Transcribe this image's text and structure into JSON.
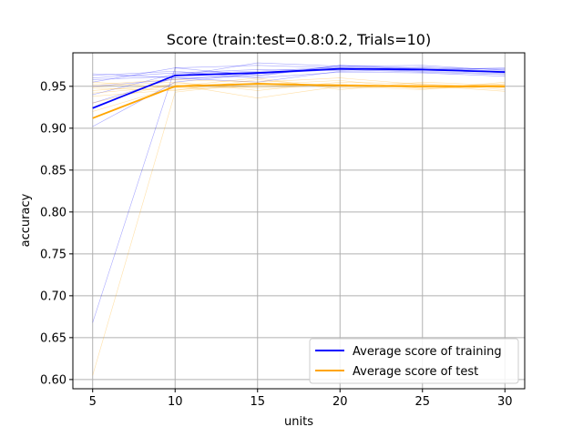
{
  "chart_data": {
    "type": "line",
    "title": "Score (train:test=0.8:0.2, Trials=10)",
    "xlabel": "units",
    "ylabel": "accuracy",
    "x": [
      5,
      10,
      15,
      20,
      25,
      30
    ],
    "xticks": [
      "5",
      "10",
      "15",
      "20",
      "25",
      "30"
    ],
    "yticks": [
      "0.60",
      "0.65",
      "0.70",
      "0.75",
      "0.80",
      "0.85",
      "0.90",
      "0.95"
    ],
    "xlim": [
      3.8,
      31.2
    ],
    "ylim": [
      0.589,
      0.99
    ],
    "grid": true,
    "legend_position": "lower-right",
    "colors": {
      "train": "#0000ff",
      "test": "#ffa500"
    },
    "series": [
      {
        "name": "Average score of training",
        "role": "train",
        "values": [
          0.924,
          0.963,
          0.966,
          0.971,
          0.97,
          0.967
        ]
      },
      {
        "name": "Average score of test",
        "role": "test",
        "values": [
          0.912,
          0.95,
          0.953,
          0.951,
          0.95,
          0.95
        ]
      }
    ],
    "trial_series": [
      {
        "role": "train",
        "values": [
          0.965,
          0.96,
          0.962,
          0.975,
          0.972,
          0.968
        ]
      },
      {
        "role": "train",
        "values": [
          0.96,
          0.966,
          0.97,
          0.969,
          0.973,
          0.97
        ]
      },
      {
        "role": "train",
        "values": [
          0.955,
          0.972,
          0.975,
          0.972,
          0.968,
          0.965
        ]
      },
      {
        "role": "train",
        "values": [
          0.95,
          0.958,
          0.965,
          0.97,
          0.97,
          0.972
        ]
      },
      {
        "role": "train",
        "values": [
          0.963,
          0.968,
          0.96,
          0.967,
          0.966,
          0.962
        ]
      },
      {
        "role": "train",
        "values": [
          0.958,
          0.962,
          0.978,
          0.974,
          0.975,
          0.969
        ]
      },
      {
        "role": "train",
        "values": [
          0.94,
          0.965,
          0.968,
          0.973,
          0.971,
          0.966
        ]
      },
      {
        "role": "train",
        "values": [
          0.93,
          0.96,
          0.955,
          0.968,
          0.969,
          0.967
        ]
      },
      {
        "role": "train",
        "values": [
          0.902,
          0.955,
          0.965,
          0.97,
          0.967,
          0.964
        ]
      },
      {
        "role": "train",
        "values": [
          0.668,
          0.972,
          0.963,
          0.975,
          0.97,
          0.971
        ]
      },
      {
        "role": "test",
        "values": [
          0.955,
          0.948,
          0.95,
          0.952,
          0.948,
          0.95
        ]
      },
      {
        "role": "test",
        "values": [
          0.95,
          0.955,
          0.945,
          0.955,
          0.953,
          0.948
        ]
      },
      {
        "role": "test",
        "values": [
          0.948,
          0.945,
          0.958,
          0.948,
          0.95,
          0.952
        ]
      },
      {
        "role": "test",
        "values": [
          0.945,
          0.952,
          0.936,
          0.95,
          0.946,
          0.955
        ]
      },
      {
        "role": "test",
        "values": [
          0.952,
          0.958,
          0.955,
          0.96,
          0.952,
          0.946
        ]
      },
      {
        "role": "test",
        "values": [
          0.942,
          0.95,
          0.96,
          0.946,
          0.955,
          0.951
        ]
      },
      {
        "role": "test",
        "values": [
          0.938,
          0.946,
          0.95,
          0.953,
          0.949,
          0.953
        ]
      },
      {
        "role": "test",
        "values": [
          0.93,
          0.954,
          0.948,
          0.951,
          0.951,
          0.944
        ]
      },
      {
        "role": "test",
        "values": [
          0.92,
          0.949,
          0.952,
          0.957,
          0.947,
          0.95
        ]
      },
      {
        "role": "test",
        "values": [
          0.605,
          0.943,
          0.954,
          0.95,
          0.952,
          0.949
        ]
      }
    ]
  }
}
